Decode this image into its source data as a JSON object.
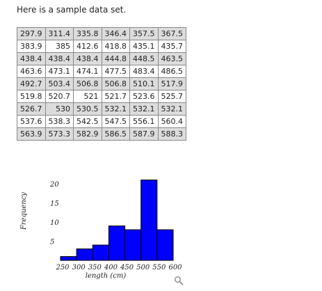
{
  "intro_text": "Here is a sample data set.",
  "table": {
    "rows": [
      [
        "297.9",
        "311.4",
        "335.8",
        "346.4",
        "357.5",
        "367.5"
      ],
      [
        "383.9",
        "385",
        "412.6",
        "418.8",
        "435.1",
        "435.7"
      ],
      [
        "438.4",
        "438.4",
        "438.4",
        "444.8",
        "448.5",
        "463.5"
      ],
      [
        "463.6",
        "473.1",
        "474.1",
        "477.5",
        "483.4",
        "486.5"
      ],
      [
        "492.7",
        "503.4",
        "506.8",
        "506.8",
        "510.1",
        "517.9"
      ],
      [
        "519.8",
        "520.7",
        "521",
        "521.7",
        "523.6",
        "525.7"
      ],
      [
        "526.7",
        "530",
        "530.5",
        "532.1",
        "532.1",
        "532.1"
      ],
      [
        "537.6",
        "538.3",
        "542.5",
        "547.5",
        "556.1",
        "560.4"
      ],
      [
        "563.9",
        "573.3",
        "582.9",
        "586.5",
        "587.9",
        "588.3"
      ]
    ]
  },
  "chart_data": {
    "type": "bar",
    "xlabel": "length (cm)",
    "ylabel": "Frequency",
    "x_ticks": [
      250,
      300,
      350,
      400,
      450,
      500,
      550,
      600
    ],
    "y_ticks": [
      5,
      10,
      15,
      20
    ],
    "xlim": [
      250,
      600
    ],
    "ylim": [
      0,
      22
    ],
    "bins": [
      {
        "from": 250,
        "to": 300,
        "count": 1
      },
      {
        "from": 300,
        "to": 350,
        "count": 3
      },
      {
        "from": 350,
        "to": 400,
        "count": 4
      },
      {
        "from": 400,
        "to": 450,
        "count": 9
      },
      {
        "from": 450,
        "to": 500,
        "count": 8
      },
      {
        "from": 500,
        "to": 550,
        "count": 21
      },
      {
        "from": 550,
        "to": 600,
        "count": 8
      }
    ],
    "bar_color": "#0000ff",
    "bar_edge_color": "#000000"
  },
  "zoom_icon": "magnifier-icon"
}
